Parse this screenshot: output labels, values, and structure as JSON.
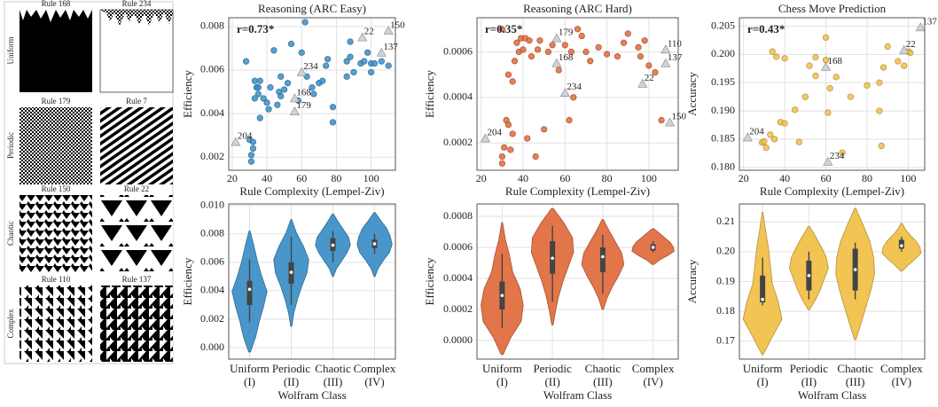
{
  "panel": {
    "rows": [
      {
        "label": "Uniform",
        "rules": [
          "Rule 168",
          "Rule 234"
        ]
      },
      {
        "label": "Periodic",
        "rules": [
          "Rule 179",
          "Rule 7"
        ]
      },
      {
        "label": "Chaotic",
        "rules": [
          "Rule 150",
          "Rule 22"
        ]
      },
      {
        "label": "Complex",
        "rules": [
          "Rule 110",
          "Rule 137"
        ]
      }
    ]
  },
  "chart_data": [
    {
      "type": "scatter",
      "title": "Reasoning (ARC Easy)",
      "xlabel": "Rule Complexity (Lempel-Ziv)",
      "ylabel": "Efficiency",
      "annotation": "r=0.73*",
      "color": "#3a8ec6",
      "grid": true,
      "xlim": [
        18,
        114
      ],
      "xticks": [
        20,
        40,
        60,
        80,
        100
      ],
      "ylim": [
        0.0014,
        0.0084
      ],
      "yticks": [
        0.002,
        0.004,
        0.006,
        0.008
      ],
      "points": {
        "x": [
          30,
          31,
          31,
          32,
          32,
          33,
          33,
          34,
          35,
          35,
          36,
          36,
          38,
          40,
          41,
          42,
          44,
          46,
          47,
          48,
          50,
          52,
          54,
          58,
          62,
          63,
          66,
          67,
          70,
          72,
          74,
          75,
          78,
          78,
          86,
          86,
          88,
          88,
          94,
          96,
          98,
          100,
          100,
          102,
          106,
          110,
          28,
          48,
          60,
          90
        ],
        "y": [
          0.0028,
          0.0021,
          0.0018,
          0.0024,
          0.0027,
          0.0047,
          0.0055,
          0.0052,
          0.0049,
          0.0052,
          0.0055,
          0.0038,
          0.0047,
          0.0045,
          0.0042,
          0.0052,
          0.0069,
          0.0044,
          0.005,
          0.0057,
          0.0051,
          0.0054,
          0.0072,
          0.0046,
          0.0082,
          0.0057,
          0.0052,
          0.0049,
          0.0054,
          0.0055,
          0.0062,
          0.0065,
          0.0036,
          0.0043,
          0.0057,
          0.0064,
          0.0066,
          0.0073,
          0.0063,
          0.0064,
          0.0068,
          0.0059,
          0.0063,
          0.0063,
          0.0064,
          0.0062,
          0.0064,
          0.0048,
          0.0068,
          0.0059
        ]
      },
      "labeled": {
        "x": [
          22,
          60,
          56,
          56,
          95,
          110,
          106
        ],
        "y": [
          0.0027,
          0.0059,
          0.0047,
          0.0041,
          0.0075,
          0.0078,
          0.0068
        ],
        "labels": [
          "204",
          "234",
          "168",
          "179",
          "22",
          "150",
          "137"
        ]
      }
    },
    {
      "type": "scatter",
      "title": "Reasoning (ARC Hard)",
      "xlabel": "Rule Complexity (Lempel-Ziv)",
      "ylabel": "Efficiency",
      "annotation": "r=0.35*",
      "color": "#e06a3b",
      "grid": true,
      "xlim": [
        18,
        114
      ],
      "xticks": [
        20,
        40,
        60,
        80,
        100
      ],
      "ylim": [
        8e-05,
        0.00075
      ],
      "yticks": [
        0.0002,
        0.0004,
        0.0006
      ],
      "points": {
        "x": [
          30,
          30,
          31,
          32,
          33,
          34,
          35,
          36,
          37,
          38,
          39,
          40,
          41,
          42,
          43,
          44,
          46,
          47,
          48,
          50,
          52,
          54,
          60,
          62,
          63,
          64,
          66,
          68,
          70,
          72,
          76,
          80,
          85,
          88,
          90,
          95,
          96,
          98,
          100,
          103,
          106,
          30,
          33,
          35,
          57
        ],
        "y": [
          0.00011,
          0.00014,
          0.00018,
          0.0003,
          0.00028,
          0.00017,
          0.00024,
          0.00056,
          0.00064,
          0.0006,
          0.00066,
          0.00061,
          0.00066,
          0.00022,
          0.00065,
          0.00058,
          0.00014,
          0.00061,
          0.00065,
          0.00026,
          0.0006,
          0.00063,
          0.00063,
          0.0003,
          0.0006,
          0.0004,
          0.0007,
          0.00067,
          0.0006,
          0.00056,
          0.00062,
          0.00059,
          0.00058,
          0.00064,
          0.00068,
          0.00062,
          0.00058,
          0.00065,
          0.00054,
          0.00051,
          0.0003,
          0.0007,
          0.0005,
          0.00047,
          0.00052
        ]
      },
      "labeled": {
        "x": [
          22,
          56,
          56,
          60,
          97,
          108,
          108,
          110
        ],
        "y": [
          0.00022,
          0.00066,
          0.00055,
          0.00042,
          0.00046,
          0.00061,
          0.00055,
          0.00029
        ],
        "labels": [
          "204",
          "179",
          "168",
          "234",
          "22",
          "110",
          "137",
          "150"
        ]
      }
    },
    {
      "type": "scatter",
      "title": "Chess Move Prediction",
      "xlabel": "Rule Complexity (Lempel-Ziv)",
      "ylabel": "Accuracy",
      "annotation": "r=0.43*",
      "color": "#f1bf45",
      "grid": true,
      "xlim": [
        18,
        108
      ],
      "xticks": [
        20,
        40,
        60,
        80,
        100
      ],
      "ylim": [
        0.1795,
        0.2065
      ],
      "yticks": [
        {
          "value": 0.18,
          "label": "0.180"
        },
        0.185,
        {
          "value": 0.19,
          "label": "0.190"
        },
        0.195,
        {
          "value": 0.2,
          "label": "0.200"
        },
        0.205
      ],
      "points": {
        "x": [
          29,
          30,
          31,
          33,
          34,
          35,
          36,
          38,
          40,
          45,
          47,
          50,
          52,
          55,
          60,
          60,
          61,
          62,
          65,
          68,
          72,
          80,
          86,
          86,
          87,
          88,
          90,
          95,
          98,
          100,
          101,
          40,
          55
        ],
        "y": [
          0.1844,
          0.1846,
          0.1835,
          0.1858,
          0.2005,
          0.185,
          0.1996,
          0.188,
          0.1993,
          0.1902,
          0.1845,
          0.1925,
          0.198,
          0.1995,
          0.203,
          0.199,
          0.1897,
          0.194,
          0.196,
          0.1826,
          0.1925,
          0.1945,
          0.19,
          0.195,
          0.1838,
          0.1977,
          0.2014,
          0.1988,
          0.198,
          0.2005,
          0.2003,
          0.1878,
          0.1962
        ]
      },
      "labeled": {
        "x": [
          22,
          60,
          98,
          106,
          61
        ],
        "y": [
          0.1853,
          0.1978,
          0.2008,
          0.2048,
          0.181
        ],
        "labels": [
          "204",
          "168",
          "22",
          "137",
          "234"
        ]
      }
    },
    {
      "type": "violin",
      "xlabel": "Wolfram Class",
      "ylabel": "Efficiency",
      "color": "#3a8ec6",
      "grid": true,
      "categories": [
        "Uniform",
        "Periodic",
        "Chaotic",
        "Complex"
      ],
      "category_numerals": [
        "(I)",
        "(II)",
        "(III)",
        "(IV)"
      ],
      "ylim": [
        -0.0008,
        0.0101
      ],
      "yticks": [
        {
          "value": 0,
          "label": "0.000"
        },
        0.002,
        0.004,
        0.006,
        0.008,
        {
          "value": 0.01,
          "label": "0.010"
        }
      ],
      "violins": [
        {
          "low": -0.0003,
          "high": 0.0082,
          "density": [
            0.05,
            0.35,
            0.55,
            0.8,
            1,
            0.7,
            0.45,
            0.25,
            0.03
          ],
          "min": 0.0018,
          "q1": 0.003,
          "median": 0.0041,
          "q3": 0.0047,
          "max": 0.0062
        },
        {
          "low": 0.0015,
          "high": 0.009,
          "density": [
            0.03,
            0.15,
            0.35,
            0.6,
            0.9,
            1,
            0.7,
            0.3,
            0.03
          ],
          "min": 0.003,
          "q1": 0.0045,
          "median": 0.0053,
          "q3": 0.006,
          "max": 0.0078
        },
        {
          "low": 0.005,
          "high": 0.0094,
          "density": [
            0.03,
            0.2,
            0.5,
            0.8,
            1,
            0.9,
            0.6,
            0.3,
            0.03
          ],
          "min": 0.006,
          "q1": 0.0068,
          "median": 0.0072,
          "q3": 0.0077,
          "max": 0.0082
        },
        {
          "low": 0.005,
          "high": 0.0095,
          "density": [
            0.03,
            0.2,
            0.5,
            0.85,
            1,
            0.9,
            0.7,
            0.35,
            0.03
          ],
          "min": 0.0066,
          "q1": 0.007,
          "median": 0.0073,
          "q3": 0.0076,
          "max": 0.008
        }
      ]
    },
    {
      "type": "violin",
      "xlabel": "Wolfram Class",
      "ylabel": "Efficiency",
      "color": "#e06a3b",
      "grid": true,
      "categories": [
        "Uniform",
        "Periodic",
        "Chaotic",
        "Complex"
      ],
      "category_numerals": [
        "(I)",
        "(II)",
        "(III)",
        "(IV)"
      ],
      "ylim": [
        -0.00012,
        0.00088
      ],
      "yticks": [
        {
          "value": 0,
          "label": "0.0000"
        },
        0.0002,
        0.0004,
        0.0006,
        0.0008
      ],
      "violins": [
        {
          "low": -9e-05,
          "high": 0.00076,
          "density": [
            0.05,
            0.4,
            0.9,
            1,
            0.85,
            0.5,
            0.35,
            0.15,
            0.02
          ],
          "min": 8e-05,
          "q1": 0.0002,
          "median": 0.00029,
          "q3": 0.00038,
          "max": 0.00056
        },
        {
          "low": 0.0001,
          "high": 0.00085,
          "density": [
            0.03,
            0.15,
            0.3,
            0.5,
            0.75,
            1,
            0.95,
            0.55,
            0.05
          ],
          "min": 0.00025,
          "q1": 0.00043,
          "median": 0.00053,
          "q3": 0.00064,
          "max": 0.00074
        },
        {
          "low": 0.0002,
          "high": 0.00078,
          "density": [
            0.03,
            0.2,
            0.45,
            0.75,
            1,
            0.9,
            0.6,
            0.3,
            0.03
          ],
          "min": 0.0003,
          "q1": 0.00044,
          "median": 0.00054,
          "q3": 0.0006,
          "max": 0.00068
        },
        {
          "low": 0.00049,
          "high": 0.00072,
          "density": [
            0.05,
            0.3,
            0.7,
            1,
            0.95,
            0.8,
            0.55,
            0.3,
            0.05
          ],
          "min": 0.00057,
          "q1": 0.00058,
          "median": 0.0006,
          "q3": 0.00062,
          "max": 0.00064
        }
      ]
    },
    {
      "type": "violin",
      "xlabel": "Wolfram Class",
      "ylabel": "Accuracy",
      "color": "#f1bf45",
      "grid": true,
      "categories": [
        "Uniform",
        "Periodic",
        "Chaotic",
        "Complex"
      ],
      "category_numerals": [
        "(I)",
        "(II)",
        "(III)",
        "(IV)"
      ],
      "ylim": [
        0.164,
        0.216
      ],
      "yticks": [
        0.17,
        0.18,
        0.19,
        {
          "value": 0.2,
          "label": "0.20"
        },
        0.21
      ],
      "violins": [
        {
          "low": 0.1655,
          "high": 0.2132,
          "density": [
            0.03,
            0.5,
            1,
            0.8,
            0.5,
            0.4,
            0.3,
            0.15,
            0.02
          ],
          "min": 0.182,
          "q1": 0.183,
          "median": 0.184,
          "q3": 0.192,
          "max": 0.198
        },
        {
          "low": 0.1805,
          "high": 0.2085,
          "density": [
            0.03,
            0.35,
            0.6,
            0.8,
            1,
            0.9,
            0.65,
            0.35,
            0.03
          ],
          "min": 0.184,
          "q1": 0.187,
          "median": 0.192,
          "q3": 0.197,
          "max": 0.2
        },
        {
          "low": 0.1705,
          "high": 0.2145,
          "density": [
            0.03,
            0.3,
            0.55,
            0.8,
            1,
            0.95,
            0.75,
            0.4,
            0.03
          ],
          "min": 0.184,
          "q1": 0.187,
          "median": 0.194,
          "q3": 0.201,
          "max": 0.203
        },
        {
          "low": 0.1935,
          "high": 0.2095,
          "density": [
            0.03,
            0.35,
            0.7,
            1,
            0.95,
            0.75,
            0.45,
            0.2,
            0.03
          ],
          "min": 0.2,
          "q1": 0.201,
          "median": 0.202,
          "q3": 0.204,
          "max": 0.205
        }
      ]
    }
  ]
}
